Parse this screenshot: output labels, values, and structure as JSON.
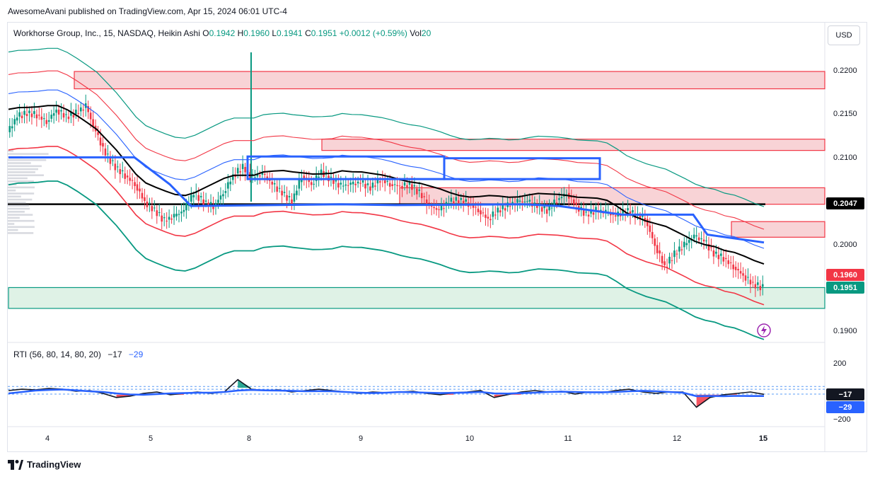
{
  "header": {
    "published": "AwesomeAvani published on TradingView.com, Apr 15, 2024 06:01 UTC-4"
  },
  "legend": {
    "symbol": "Workhorse Group, Inc., 15, NASDAQ, Heikin Ashi",
    "open_label": "O",
    "open": "0.1942",
    "high_label": "H",
    "high": "0.1960",
    "low_label": "L",
    "low": "0.1941",
    "close_label": "C",
    "close": "0.1951",
    "change": "+0.0012 (+0.59%)",
    "vol_label": "Vol",
    "vol": "20"
  },
  "currency_button": "USD",
  "price_axis": {
    "ticks": [
      "0.2200",
      "0.2150",
      "0.2100",
      "0.2000",
      "0.1900"
    ],
    "badges": [
      {
        "value": "0.2047",
        "color": "#000000"
      },
      {
        "value": "0.1960",
        "color": "#f23645"
      },
      {
        "value": "0.1951",
        "color": "#089981"
      }
    ]
  },
  "rti": {
    "label": "RTI (56, 80, 14, 80, 20)",
    "value_a": "−17",
    "value_b": "−29",
    "ticks": [
      "200",
      "−200"
    ],
    "badges": [
      {
        "value": "−17",
        "color": "#131722"
      },
      {
        "value": "−29",
        "color": "#2962ff"
      }
    ]
  },
  "time_axis": {
    "ticks": [
      "4",
      "5",
      "8",
      "9",
      "10",
      "11",
      "12",
      "15"
    ]
  },
  "brand": {
    "name": "TradingView",
    "icon": "tradingview-logo-icon"
  },
  "flash_icon": "lightning-icon",
  "colors": {
    "up": "#089981",
    "down": "#f23645",
    "blue": "#2962ff",
    "black": "#000000",
    "zone_red": "#f8d3d6",
    "zone_green": "#dff2e6"
  },
  "chart_data": [
    {
      "type": "candlestick",
      "title": "Workhorse Group, Inc., 15, NASDAQ, Heikin Ashi",
      "ylim": [
        0.1885,
        0.223
      ],
      "x_ticks": [
        "4",
        "5",
        "8",
        "9",
        "10",
        "11",
        "12",
        "15"
      ],
      "ohlc_last": {
        "open": 0.1942,
        "high": 0.196,
        "low": 0.1941,
        "close": 0.1951
      },
      "price_path": [
        0.213,
        0.2148,
        0.2152,
        0.215,
        0.2142,
        0.2156,
        0.2148,
        0.2152,
        0.216,
        0.213,
        0.2105,
        0.209,
        0.208,
        0.207,
        0.205,
        0.204,
        0.2028,
        0.2033,
        0.204,
        0.206,
        0.205,
        0.2045,
        0.206,
        0.208,
        0.209,
        0.2078,
        0.2082,
        0.207,
        0.206,
        0.205,
        0.208,
        0.207,
        0.2085,
        0.2075,
        0.2068,
        0.207,
        0.2072,
        0.2066,
        0.2076,
        0.207,
        0.2068,
        0.207,
        0.206,
        0.2045,
        0.204,
        0.205,
        0.2052,
        0.2048,
        0.204,
        0.203,
        0.204,
        0.2045,
        0.205,
        0.205,
        0.2045,
        0.204,
        0.2052,
        0.206,
        0.2045,
        0.2035,
        0.204,
        0.2038,
        0.2033,
        0.204,
        0.2035,
        0.203,
        0.2,
        0.1975,
        0.199,
        0.2,
        0.201,
        0.2005,
        0.199,
        0.1985,
        0.1975,
        0.1965,
        0.1955,
        0.1951
      ],
      "zones": [
        {
          "kind": "supply",
          "from": 0.218,
          "to": 0.22
        },
        {
          "kind": "supply",
          "from": 0.2109,
          "to": 0.2122
        },
        {
          "kind": "supply",
          "from": 0.2047,
          "to": 0.2066
        },
        {
          "kind": "supply",
          "from": 0.2009,
          "to": 0.2027
        },
        {
          "kind": "demand",
          "from": 0.1927,
          "to": 0.1951
        }
      ],
      "levels": [
        0.2047
      ]
    },
    {
      "type": "line",
      "title": "RTI (56, 80, 14, 80, 20)",
      "ylim": [
        -200,
        200
      ],
      "series": [
        {
          "name": "",
          "last": -17,
          "values": [
            10,
            20,
            15,
            25,
            20,
            5,
            10,
            -10,
            -40,
            -30,
            -10,
            0,
            -20,
            -10,
            0,
            -10,
            0,
            90,
            20,
            10,
            15,
            0,
            10,
            20,
            10,
            0,
            -10,
            0,
            -5,
            0,
            5,
            -10,
            -20,
            -5,
            0,
            10,
            -40,
            -20,
            0,
            10,
            0,
            5,
            -15,
            0,
            -5,
            10,
            20,
            0,
            -10,
            0,
            0,
            -110,
            -40,
            -20,
            -10,
            0,
            -17
          ]
        },
        {
          "name": "",
          "last": -29,
          "values": [
            -10,
            0,
            10,
            15,
            18,
            12,
            5,
            0,
            -10,
            -18,
            -20,
            -15,
            -10,
            -8,
            -5,
            -5,
            0,
            10,
            15,
            12,
            10,
            8,
            5,
            6,
            5,
            0,
            -5,
            -8,
            -5,
            0,
            -2,
            -5,
            -8,
            -6,
            -4,
            0,
            -10,
            -12,
            -8,
            -5,
            0,
            2,
            0,
            -2,
            -2,
            0,
            5,
            8,
            5,
            0,
            -5,
            -30,
            -29,
            -30,
            -28,
            -29,
            -29
          ]
        }
      ],
      "levels": [
        40,
        20,
        0
      ]
    }
  ]
}
